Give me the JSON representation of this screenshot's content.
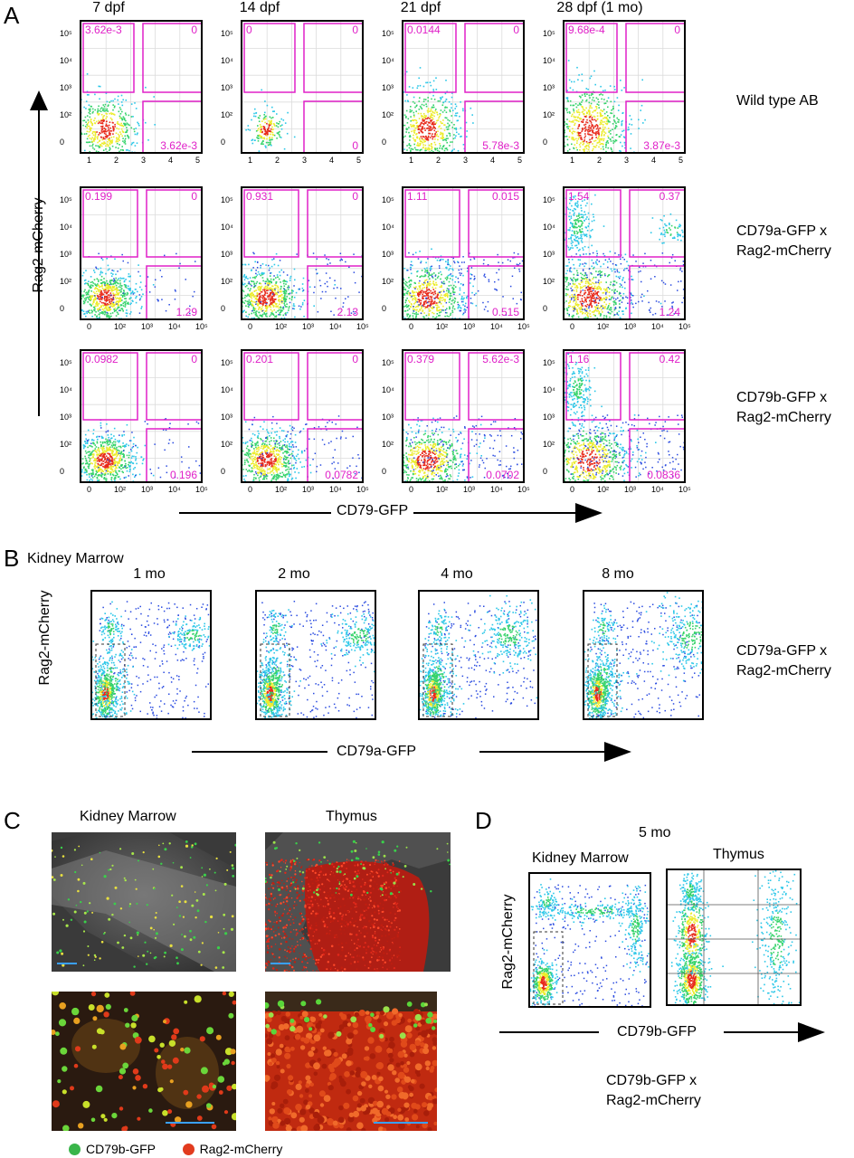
{
  "panels": {
    "A": {
      "letter": "A",
      "columns": [
        "7 dpf",
        "14 dpf",
        "21 dpf",
        "28 dpf (1 mo)"
      ],
      "rows": [
        {
          "label": "Wild type AB",
          "values": [
            [
              "3.62e-3",
              "0",
              "3.62e-3"
            ],
            [
              "0",
              "0",
              "0"
            ],
            [
              "0.0144",
              "0",
              "5.78e-3"
            ],
            [
              "9.68e-4",
              "0",
              "3.87e-3"
            ]
          ]
        },
        {
          "label1": "CD79a-GFP x",
          "label2": "Rag2-mCherry",
          "values": [
            [
              "0.199",
              "0",
              "1.29"
            ],
            [
              "0.931",
              "0",
              "2.13"
            ],
            [
              "1.11",
              "0.015",
              "0.515"
            ],
            [
              "1.54",
              "0.37",
              "1.24"
            ]
          ]
        },
        {
          "label1": "CD79b-GFP x",
          "label2": "Rag2-mCherry",
          "values": [
            [
              "0.0982",
              "0",
              "0.196"
            ],
            [
              "0.201",
              "0",
              "0.0782"
            ],
            [
              "0.379",
              "5.62e-3",
              "0.0702"
            ],
            [
              "1.16",
              "0.42",
              "0.0836"
            ]
          ]
        }
      ],
      "y_axis": "Rag2-mCherry",
      "x_axis": "CD79-GFP",
      "yticks": [
        "10⁵",
        "10⁴",
        "10³",
        "10²",
        "0"
      ],
      "xticks_linear": [
        "1",
        "2",
        "3",
        "4",
        "5"
      ],
      "xticks_log": [
        "0",
        "10²",
        "10³",
        "10⁴",
        "10⁵"
      ]
    },
    "B": {
      "letter": "B",
      "subtitle": "Kidney Marrow",
      "columns": [
        "1 mo",
        "2 mo",
        "4 mo",
        "8 mo"
      ],
      "y_axis": "Rag2-mCherry",
      "x_axis": "CD79a-GFP",
      "row_label1": "CD79a-GFP x",
      "row_label2": "Rag2-mCherry"
    },
    "C": {
      "letter": "C",
      "titles": [
        "Kidney Marrow",
        "Thymus"
      ],
      "legend": [
        {
          "label": "CD79b-GFP",
          "color": "#39b54a"
        },
        {
          "label": "Rag2-mCherry",
          "color": "#e23b1e"
        }
      ]
    },
    "D": {
      "letter": "D",
      "time": "5 mo",
      "titles": [
        "Kidney Marrow",
        "Thymus"
      ],
      "y_axis": "Rag2-mCherry",
      "x_axis": "CD79b-GFP",
      "caption1": "CD79b-GFP x",
      "caption2": "Rag2-mCherry"
    }
  }
}
